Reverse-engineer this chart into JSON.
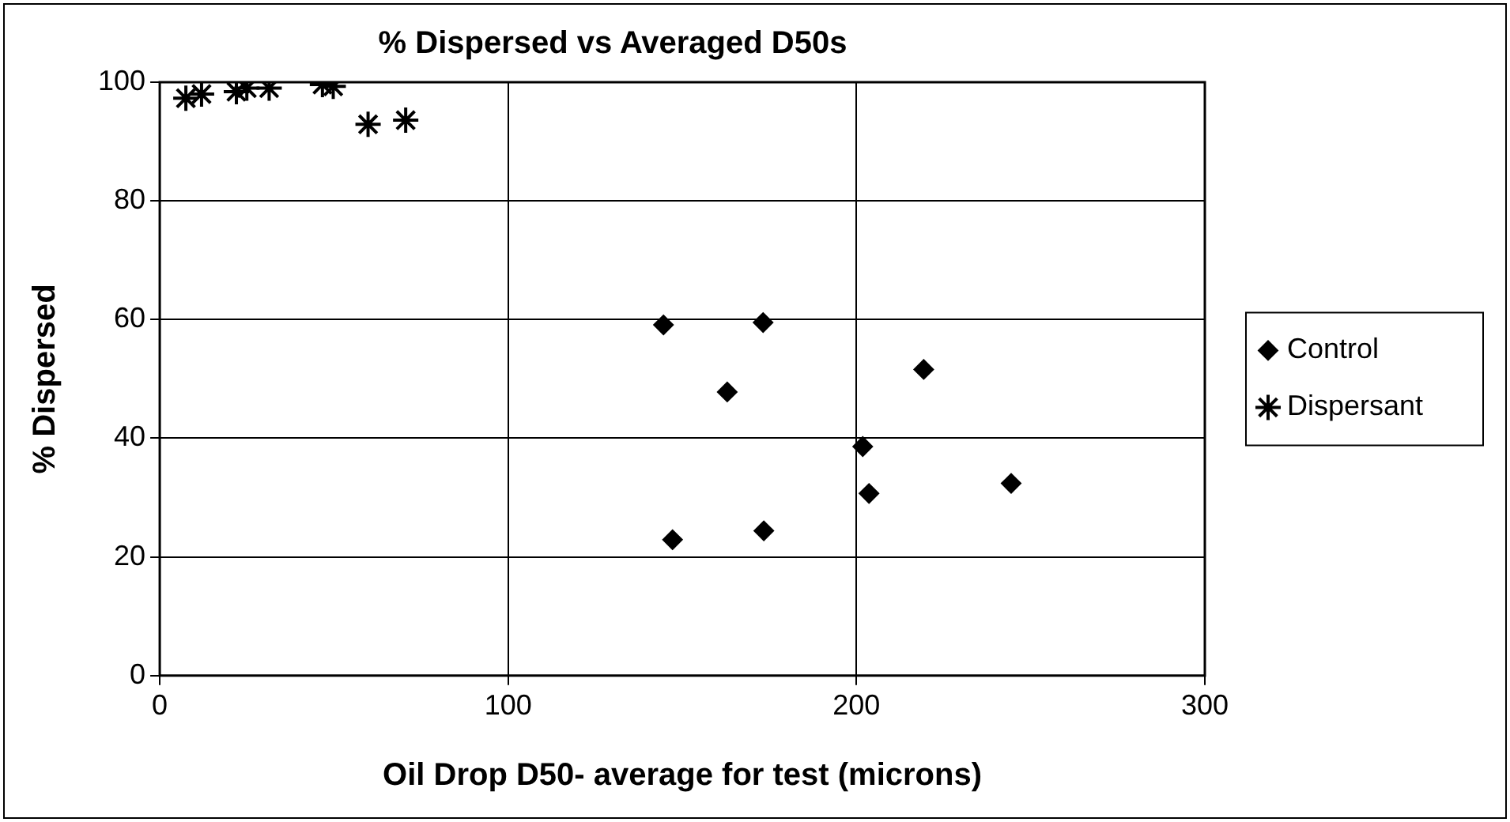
{
  "chart_data": {
    "type": "scatter",
    "title": "% Dispersed vs Averaged D50s",
    "xlabel": "Oil Drop D50- average for test (microns)",
    "ylabel": "% Dispersed",
    "xlim": [
      0,
      300
    ],
    "xticks": [
      0,
      100,
      200,
      300
    ],
    "ylim": [
      0,
      100
    ],
    "yticks": [
      0,
      20,
      40,
      60,
      80,
      100
    ],
    "grid": true,
    "legend": "right",
    "series": [
      {
        "name": "Control",
        "color": "#000000",
        "marker": "diamond",
        "x": [
          144.6,
          173.2,
          162.9,
          219.3,
          201.8,
          203.6,
          244.4,
          147.2,
          173.4
        ],
        "values": [
          59.1,
          59.5,
          47.8,
          51.6,
          38.6,
          30.7,
          32.4,
          22.9,
          24.4
        ]
      },
      {
        "name": "Dispersant",
        "color": "#000000",
        "marker": "cross",
        "x": [
          7.5,
          12,
          22,
          25,
          31.4,
          46.7,
          49.8,
          59.8,
          70.6
        ],
        "values": [
          97.3,
          98,
          98.4,
          99,
          99,
          99.6,
          99.3,
          92.9,
          93.6
        ]
      }
    ]
  }
}
